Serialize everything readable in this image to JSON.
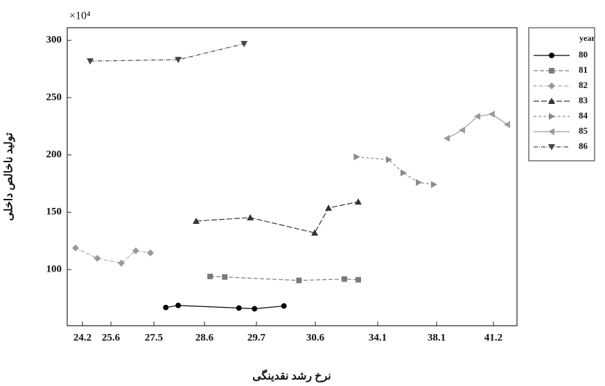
{
  "chart_data": {
    "type": "line",
    "multiplier": "×10⁴",
    "xlabel": "نرخ رشد نقدینگی",
    "ylabel": "تولید ناخالص داخلی",
    "xlim": [
      23.45,
      42.49
    ],
    "xticks": [
      24.2,
      25.6,
      27.5,
      28.6,
      29.7,
      30.6,
      34.1,
      38.1,
      41.2
    ],
    "ylim": [
      51,
      311
    ],
    "yticks": [
      100,
      150,
      200,
      250,
      300
    ],
    "legend_title": "year",
    "legend": "right",
    "series": [
      {
        "name": "80",
        "color": "#000000",
        "marker": "circle",
        "dash": "none",
        "x": [
          27.76,
          28.03,
          29.33,
          29.66,
          30.12
        ],
        "values": [
          66.9,
          68.7,
          66.4,
          65.8,
          68.2
        ]
      },
      {
        "name": "81",
        "color": "#7a7a7a",
        "marker": "square",
        "dash": "6 3",
        "x": [
          28.72,
          29.03,
          30.35,
          32.23,
          33.01
        ],
        "values": [
          94.0,
          93.5,
          90.5,
          91.7,
          91.1
        ]
      },
      {
        "name": "82",
        "color": "#9a9a9a",
        "marker": "diamond",
        "dash": "4 2 1 2",
        "x": [
          23.86,
          24.93,
          26.06,
          26.7,
          27.35
        ],
        "values": [
          118.8,
          109.8,
          105.6,
          116.4,
          114.6
        ]
      },
      {
        "name": "83",
        "color": "#333333",
        "marker": "triangle-up",
        "dash": "8 3",
        "x": [
          28.42,
          29.57,
          30.59,
          31.34,
          33.01
        ],
        "values": [
          142.3,
          145.3,
          132.0,
          153.7,
          159.1
        ]
      },
      {
        "name": "84",
        "color": "#8a8a8a",
        "marker": "triangle-right",
        "dash": "4 3",
        "x": [
          32.91,
          34.85,
          35.84,
          36.88,
          37.91
        ],
        "values": [
          198.3,
          195.9,
          184.4,
          176.0,
          174.2
        ]
      },
      {
        "name": "85",
        "color": "#9a9a9a",
        "marker": "triangle-left",
        "dash": "none",
        "x": [
          38.67,
          39.5,
          40.33,
          41.12,
          41.96
        ],
        "values": [
          214.5,
          221.7,
          233.7,
          235.6,
          226.5
        ]
      },
      {
        "name": "86",
        "color": "#444444",
        "marker": "triangle-down",
        "dash": "6 2 1 2",
        "x": [
          24.58,
          28.03,
          29.44
        ],
        "values": [
          281.9,
          283.1,
          297.0
        ]
      }
    ]
  }
}
